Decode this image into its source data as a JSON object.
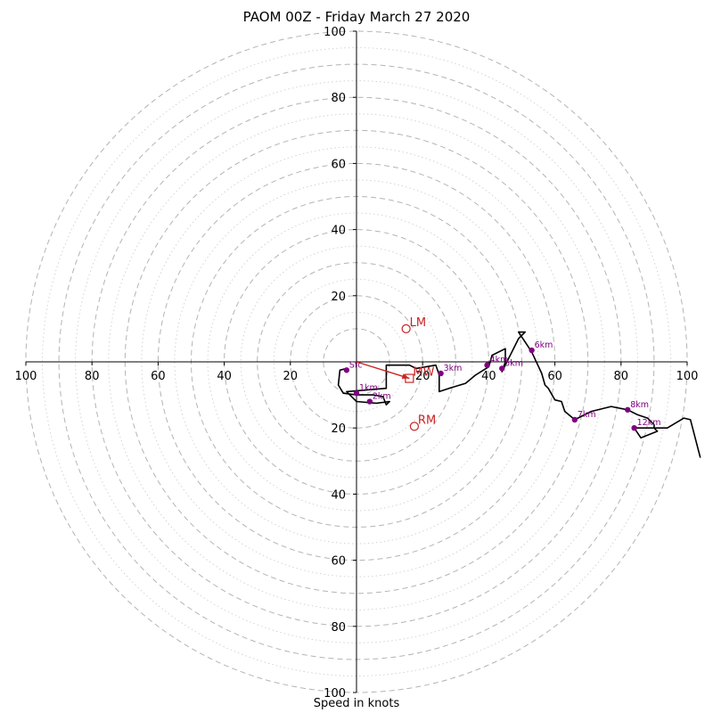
{
  "chart_data": {
    "type": "hodograph",
    "title": "PAOM 00Z - Friday March 27 2020",
    "xlabel": "Speed in knots",
    "ring_speeds_dashed": [
      10,
      20,
      30,
      40,
      50,
      60,
      70,
      80,
      90,
      100
    ],
    "ring_speeds_dotted": [
      15,
      25,
      35,
      45,
      55,
      65,
      75,
      85,
      95
    ],
    "axis_range": [
      -100,
      100
    ],
    "tick_labels": [
      "100",
      "80",
      "60",
      "40",
      "20",
      "20",
      "40",
      "60",
      "80",
      "100"
    ],
    "tick_values": [
      -100,
      -80,
      -60,
      -40,
      -20,
      20,
      40,
      60,
      80,
      100
    ],
    "grid": true,
    "trace": {
      "color": "#000000",
      "points": [
        [
          -3,
          -2
        ],
        [
          -5,
          -2.5
        ],
        [
          -5.5,
          -7
        ],
        [
          -4,
          -9.5
        ],
        [
          0,
          -10
        ],
        [
          5,
          -10
        ],
        [
          8,
          -10.5
        ],
        [
          9,
          -13
        ],
        [
          10,
          -12
        ],
        [
          6,
          -12.5
        ],
        [
          0,
          -12
        ],
        [
          -3,
          -9
        ],
        [
          9,
          -8
        ],
        [
          9,
          -1
        ],
        [
          16,
          -1
        ],
        [
          18,
          -2
        ],
        [
          24,
          -1
        ],
        [
          25,
          -4
        ],
        [
          25,
          -9
        ],
        [
          28,
          -8
        ],
        [
          33,
          -6.5
        ],
        [
          36,
          -4
        ],
        [
          40,
          -1.5
        ],
        [
          41,
          2
        ],
        [
          45,
          4
        ],
        [
          45,
          0
        ],
        [
          44,
          -3
        ],
        [
          49,
          7
        ],
        [
          51,
          9
        ],
        [
          49,
          9
        ],
        [
          51,
          6
        ],
        [
          53,
          3
        ],
        [
          56,
          -3.5
        ],
        [
          57,
          -7
        ],
        [
          58,
          -8
        ],
        [
          60,
          -11.5
        ],
        [
          62,
          -12
        ],
        [
          63,
          -15
        ],
        [
          66,
          -17.5
        ],
        [
          71,
          -15
        ],
        [
          77,
          -13.5
        ],
        [
          82,
          -14.5
        ],
        [
          85,
          -16
        ],
        [
          88,
          -17
        ],
        [
          90,
          -19
        ],
        [
          90,
          -20
        ],
        [
          91,
          -21
        ],
        [
          86,
          -23
        ],
        [
          84,
          -20
        ],
        [
          94,
          -20
        ],
        [
          99,
          -17
        ],
        [
          101,
          -17.5
        ],
        [
          104,
          -29
        ]
      ]
    },
    "height_labels": [
      {
        "label": "Sfc",
        "u": -3,
        "v": -2.5
      },
      {
        "label": "1km",
        "u": 0,
        "v": -9.5
      },
      {
        "label": "2km",
        "u": 4,
        "v": -12
      },
      {
        "label": "3km",
        "u": 25.5,
        "v": -3.5
      },
      {
        "label": "4km",
        "u": 39.5,
        "v": -1
      },
      {
        "label": "5km",
        "u": 44,
        "v": -2
      },
      {
        "label": "6km",
        "u": 53,
        "v": 3.5
      },
      {
        "label": "7km",
        "u": 66,
        "v": -17.5
      },
      {
        "label": "8km",
        "u": 82,
        "v": -14.5
      },
      {
        "label": "12km",
        "u": 84,
        "v": -20
      }
    ],
    "storm_motion": {
      "color": "#cc2222",
      "markers": [
        {
          "label": "LM",
          "u": 15,
          "v": 10,
          "shape": "circle"
        },
        {
          "label": "RM",
          "u": 17.5,
          "v": -19.5,
          "shape": "circle"
        },
        {
          "label": "MW",
          "u": 16,
          "v": -5,
          "shape": "square"
        }
      ],
      "arrow": {
        "from": [
          0,
          0
        ],
        "to": [
          16,
          -5
        ]
      }
    },
    "colors": {
      "height_dot": "#800080",
      "grid_ring": "#b4b4b4",
      "axis": "#000000"
    }
  }
}
